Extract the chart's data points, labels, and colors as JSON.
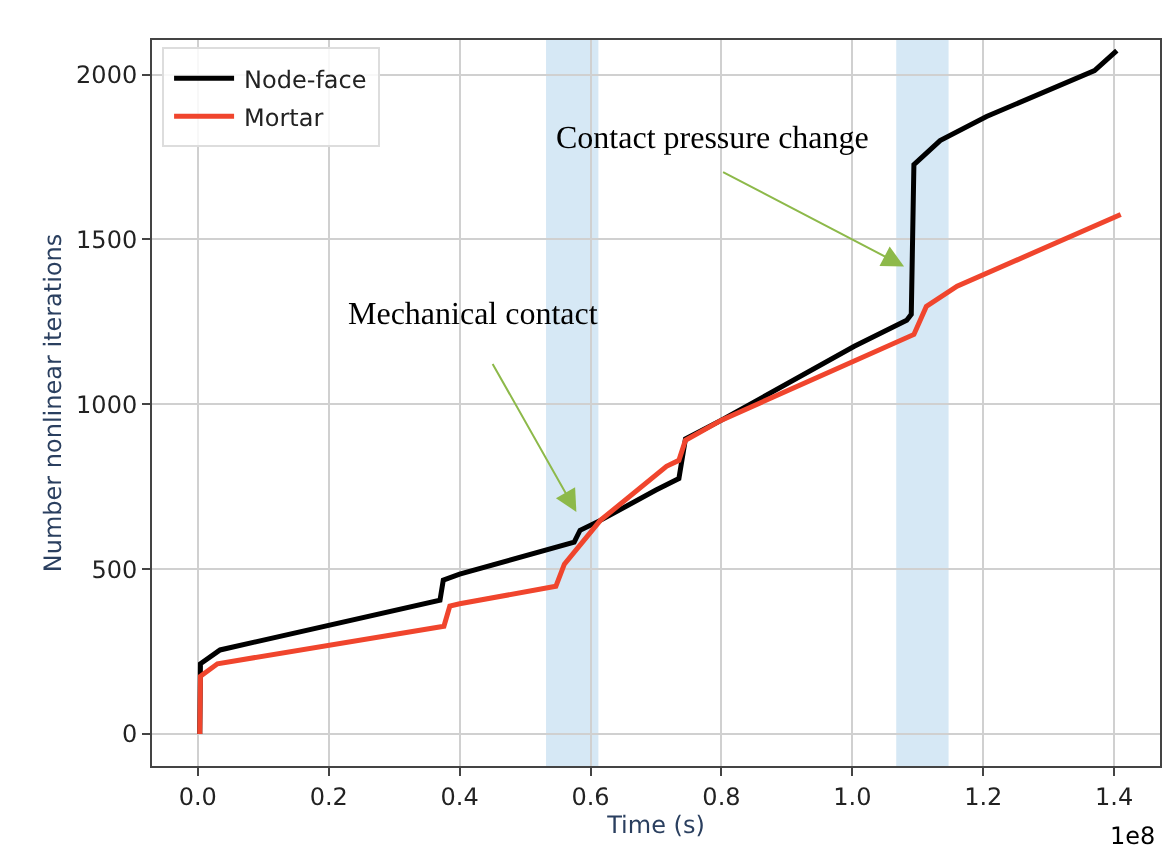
{
  "chart_data": {
    "type": "line",
    "xlabel": "Time (s)",
    "ylabel": "Number nonlinear iterations",
    "xlim": [
      -0.07,
      1.47
    ],
    "ylim": [
      -97,
      2105
    ],
    "xticks": [
      {
        "value": 0,
        "label": "0.0"
      },
      0.2,
      0.4,
      0.6,
      0.8,
      {
        "value": 1,
        "label": "1.0"
      },
      1.2,
      1.4
    ],
    "yticks": [
      0,
      500,
      1000,
      1500,
      2000
    ],
    "grid": true,
    "legend": "top left",
    "marker": "none",
    "line_style": "solid",
    "series": [
      {
        "name": "Node-face",
        "color": "#000000",
        "x": [
          0.003,
          0.004,
          0.034,
          0.37,
          0.375,
          0.4,
          0.575,
          0.584,
          0.615,
          0.7,
          0.735,
          0.745,
          0.8,
          1.003,
          1.083,
          1.09,
          1.094,
          1.134,
          1.205,
          1.37,
          1.404
        ],
        "values": [
          0,
          213,
          255,
          406,
          467,
          485,
          582,
          618,
          648,
          740,
          775,
          895,
          952,
          1176,
          1255,
          1273,
          1727,
          1800,
          1873,
          2012,
          2073
        ]
      },
      {
        "name": "Mortar",
        "color": "#f0452d",
        "x": [
          0.003,
          0.004,
          0.03,
          0.376,
          0.385,
          0.4,
          0.547,
          0.56,
          0.615,
          0.716,
          0.735,
          0.745,
          0.8,
          1.094,
          1.113,
          1.16,
          1.41
        ],
        "values": [
          0,
          175,
          213,
          327,
          388,
          395,
          448,
          515,
          648,
          812,
          830,
          891,
          952,
          1212,
          1297,
          1358,
          1576
        ]
      }
    ],
    "bands": [
      {
        "axis": "x",
        "from": 0.532,
        "to": 0.612,
        "color": "#d6e8f5"
      },
      {
        "axis": "x",
        "from": 1.067,
        "to": 1.147,
        "color": "#d6e8f5"
      }
    ],
    "annotations": [
      "Mechanical contact",
      {
        "text": "Contact pressure change",
        "x": 1.079,
        "y": 1418
      },
      "1e8"
    ]
  }
}
